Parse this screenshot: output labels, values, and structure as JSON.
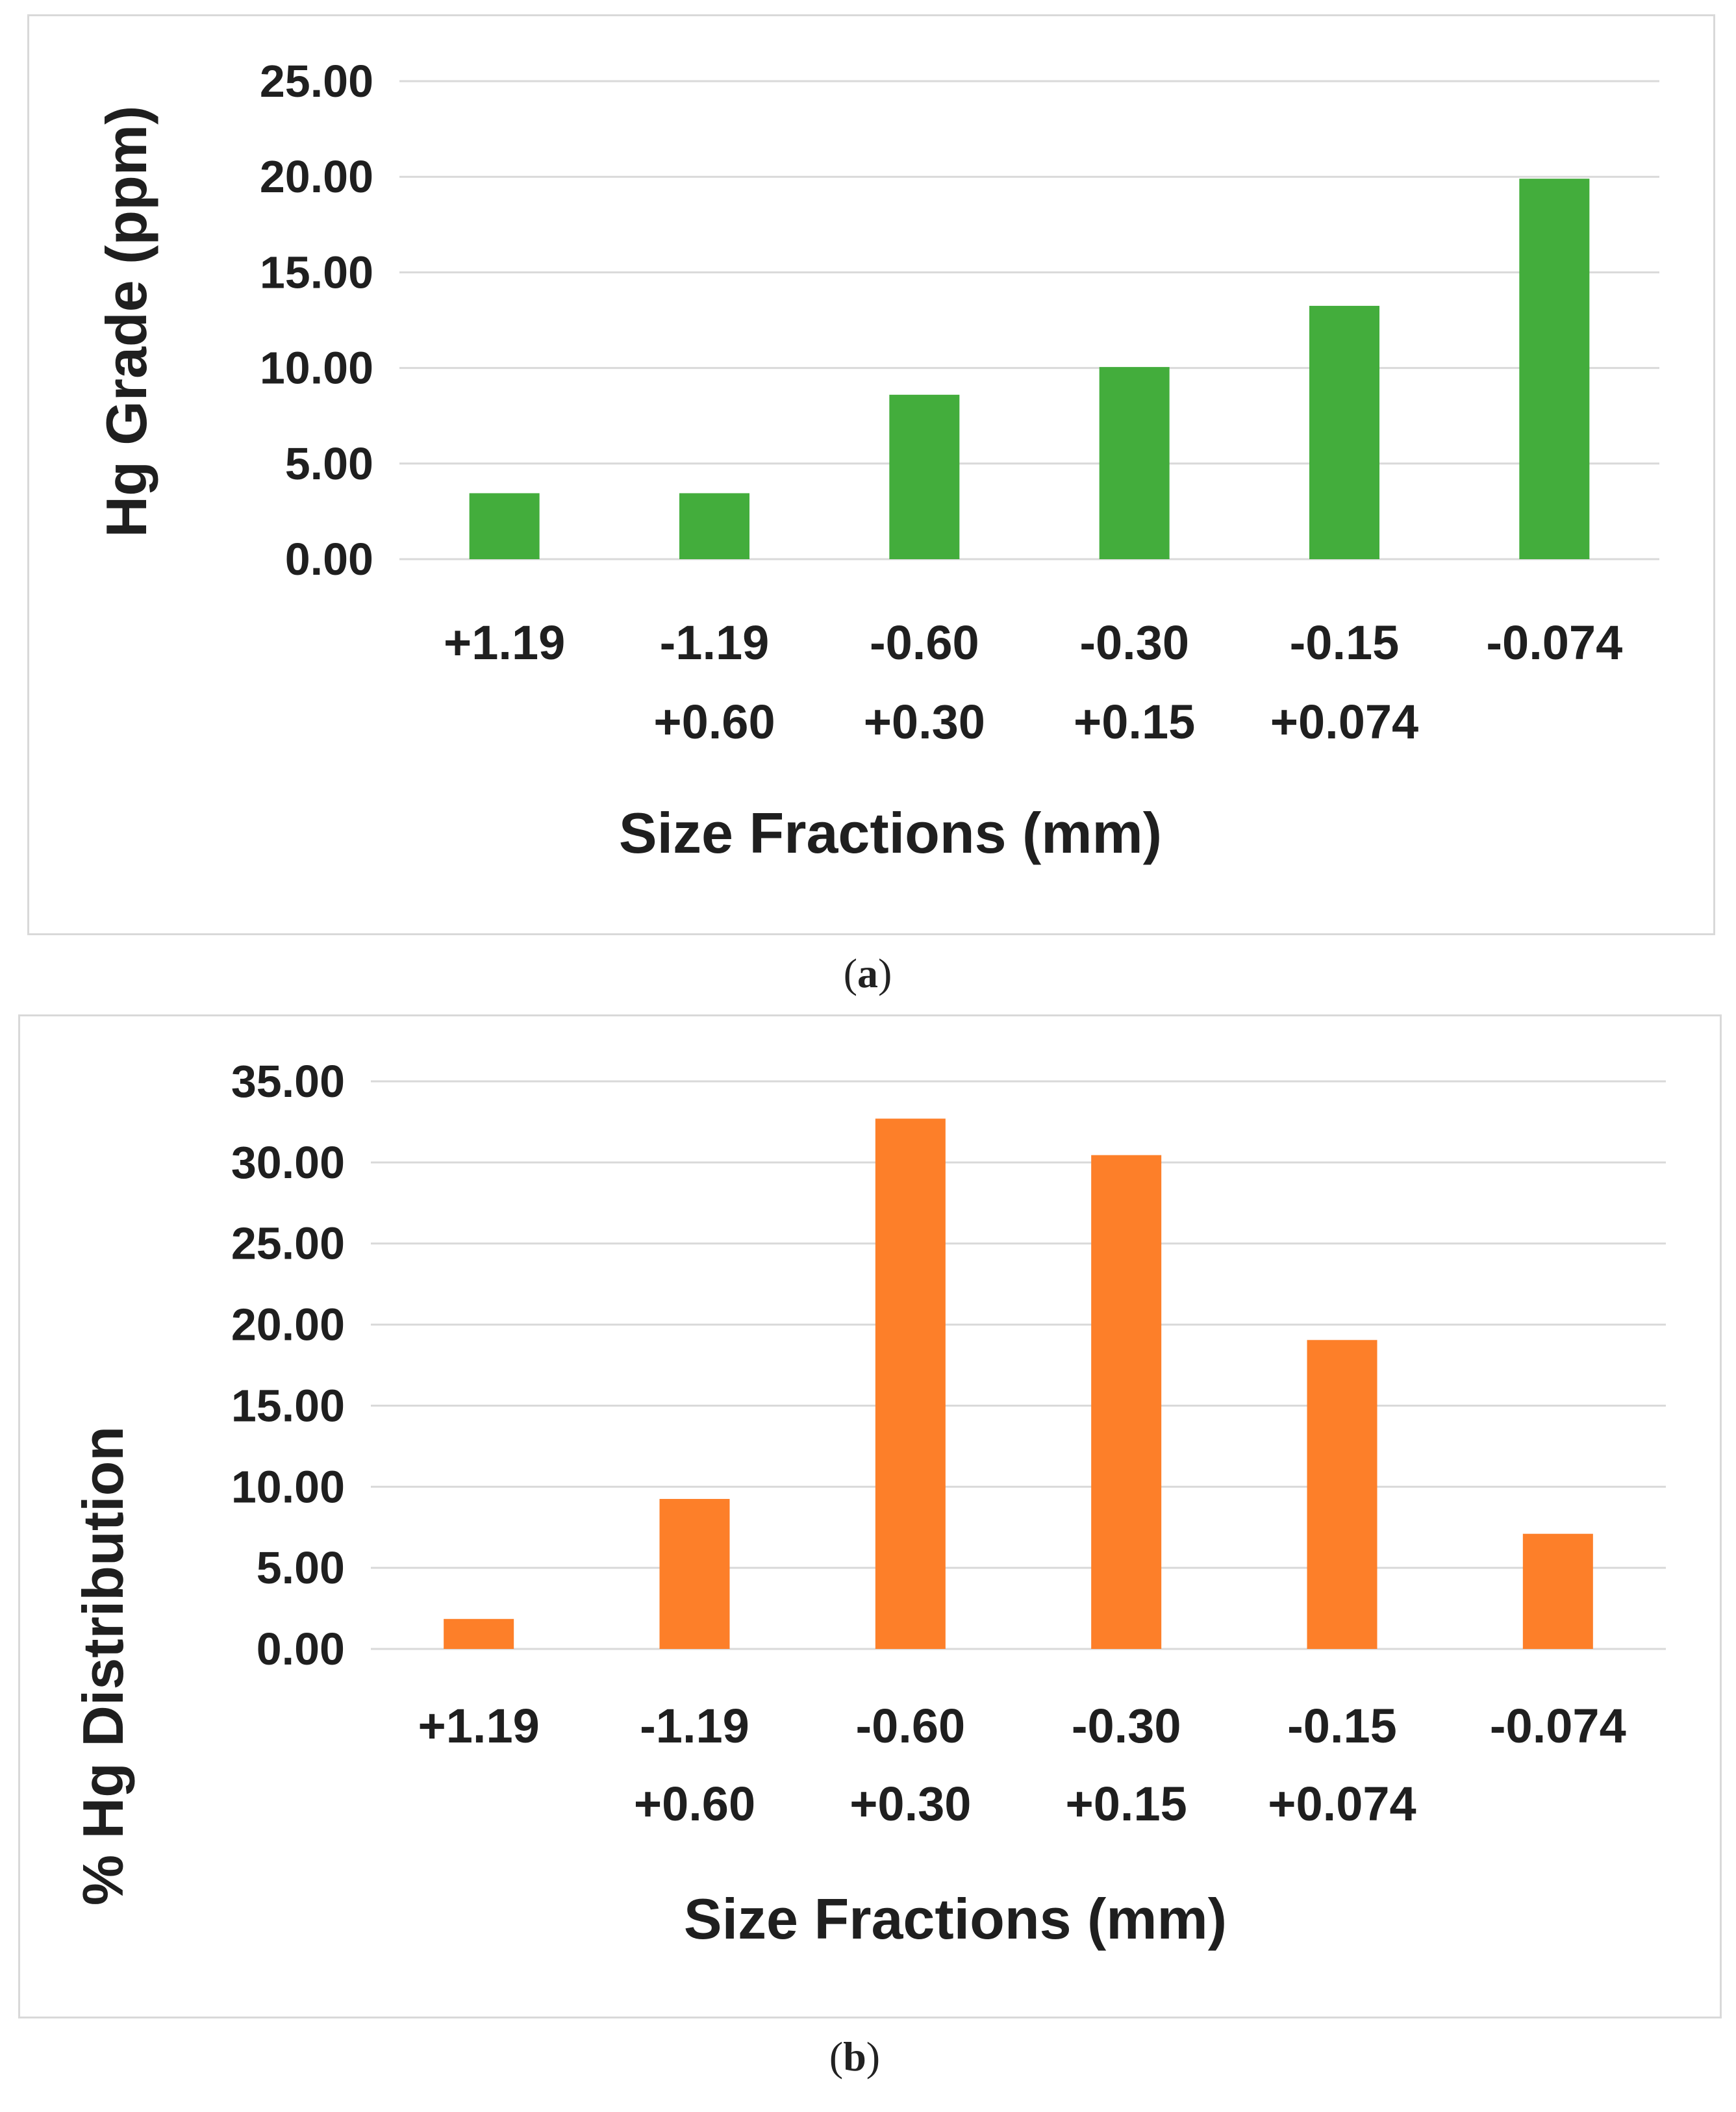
{
  "chart_data": [
    {
      "id": "a",
      "type": "bar",
      "title": "",
      "categories": [
        [
          "+1.19"
        ],
        [
          "-1.19",
          "+0.60"
        ],
        [
          "-0.60",
          "+0.30"
        ],
        [
          "-0.30",
          "+0.15"
        ],
        [
          "-0.15",
          "+0.074"
        ],
        [
          "-0.074"
        ]
      ],
      "values": [
        3.45,
        3.45,
        8.6,
        10.05,
        13.25,
        19.9
      ],
      "xlabel": "Size Fractions (mm)",
      "ylabel": "Hg Grade (ppm)",
      "ylim": [
        0,
        25
      ],
      "yticks": [
        "0.00",
        "5.00",
        "10.00",
        "15.00",
        "20.00",
        "25.00"
      ],
      "grid": true,
      "color": "#43ad3c",
      "caption_label": "a"
    },
    {
      "id": "b",
      "type": "bar",
      "title": "",
      "categories": [
        [
          "+1.19"
        ],
        [
          "-1.19",
          "+0.60"
        ],
        [
          "-0.60",
          "+0.30"
        ],
        [
          "-0.30",
          "+0.15"
        ],
        [
          "-0.15",
          "+0.074"
        ],
        [
          "-0.074"
        ]
      ],
      "values": [
        1.85,
        9.25,
        32.7,
        30.45,
        19.05,
        7.1
      ],
      "xlabel": "Size Fractions (mm)",
      "ylabel": "% Hg Distribution",
      "ylim": [
        0,
        35
      ],
      "yticks": [
        "0.00",
        "5.00",
        "10.00",
        "15.00",
        "20.00",
        "25.00",
        "30.00",
        "35.00"
      ],
      "grid": true,
      "color": "#fd7f29",
      "caption_label": "b"
    }
  ],
  "captions": {
    "a": {
      "open": "(",
      "label": "a",
      "close": ")"
    },
    "b": {
      "open": "(",
      "label": "b",
      "close": ")"
    }
  }
}
